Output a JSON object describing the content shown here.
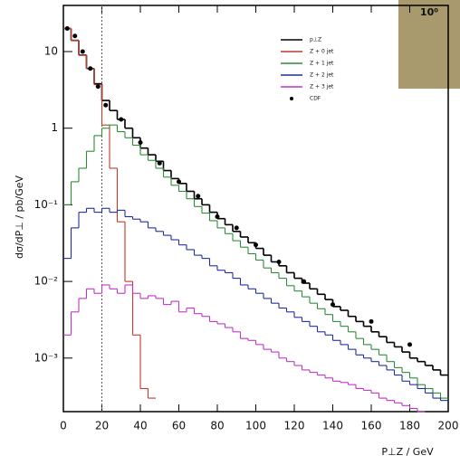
{
  "chart_data": {
    "type": "histogram",
    "y_label": "dσ/dP⊥ / pb/GeV",
    "x_label": "P⊥Z / GeV",
    "corner_label": "10⁰",
    "log_scale_y": true,
    "xlim": [
      0,
      200
    ],
    "ylim": [
      0.0002,
      40
    ],
    "xticks": [
      0,
      20,
      40,
      60,
      80,
      100,
      120,
      140,
      160,
      180,
      200
    ],
    "yticks": [
      {
        "value": 0.001,
        "label": "10⁻³"
      },
      {
        "value": 0.01,
        "label": "10⁻²"
      },
      {
        "value": 0.1,
        "label": "10⁻¹"
      },
      1,
      10
    ],
    "vline": 20,
    "bins": [
      0,
      4,
      8,
      12,
      16,
      20,
      24,
      28,
      32,
      36,
      40,
      44,
      48,
      52,
      56,
      60,
      64,
      68,
      72,
      76,
      80,
      84,
      88,
      92,
      96,
      100,
      104,
      108,
      112,
      116,
      120,
      124,
      128,
      132,
      136,
      140,
      144,
      148,
      152,
      156,
      160,
      164,
      168,
      172,
      176,
      180,
      184,
      188,
      192,
      196,
      200
    ],
    "series": [
      {
        "name": "p⊥Z",
        "color": "#000000",
        "values": [
          20,
          14,
          9,
          6,
          3.8,
          2.3,
          1.7,
          1.3,
          1.0,
          0.75,
          0.55,
          0.45,
          0.37,
          0.28,
          0.22,
          0.19,
          0.15,
          0.12,
          0.1,
          0.08,
          0.066,
          0.055,
          0.045,
          0.038,
          0.032,
          0.027,
          0.022,
          0.018,
          0.016,
          0.013,
          0.011,
          0.0095,
          0.008,
          0.0068,
          0.0058,
          0.0047,
          0.0042,
          0.0035,
          0.003,
          0.0026,
          0.0022,
          0.0019,
          0.0016,
          0.0014,
          0.0012,
          0.001,
          0.0009,
          0.0008,
          0.0007,
          0.0006
        ]
      },
      {
        "name": "Z + 0 jet",
        "color": "#c0392b",
        "values": [
          20,
          14,
          9,
          6,
          3.7,
          1.1,
          0.3,
          0.06,
          0.01,
          0.002,
          0.0004,
          0.0003,
          null,
          null,
          null,
          null,
          null,
          null,
          null,
          null,
          null,
          null,
          null,
          null,
          null,
          null,
          null,
          null,
          null,
          null,
          null,
          null,
          null,
          null,
          null,
          null,
          null,
          null,
          null,
          null,
          null,
          null,
          null,
          null,
          null,
          null,
          null,
          null,
          null,
          null
        ]
      },
      {
        "name": "Z + 1 jet",
        "color": "#2e8b3a",
        "values": [
          0.1,
          0.2,
          0.3,
          0.5,
          0.8,
          1.0,
          1.1,
          0.9,
          0.75,
          0.6,
          0.45,
          0.38,
          0.3,
          0.23,
          0.18,
          0.15,
          0.12,
          0.095,
          0.078,
          0.062,
          0.05,
          0.042,
          0.034,
          0.028,
          0.023,
          0.019,
          0.015,
          0.013,
          0.011,
          0.0088,
          0.0075,
          0.0063,
          0.0052,
          0.0044,
          0.0037,
          0.003,
          0.0026,
          0.0022,
          0.0018,
          0.0015,
          0.0013,
          0.0011,
          0.0009,
          0.00075,
          0.00065,
          0.00055,
          0.00045,
          0.0004,
          0.00035,
          0.0003
        ]
      },
      {
        "name": "Z + 2 jet",
        "color": "#1f2fa0",
        "values": [
          0.02,
          0.05,
          0.08,
          0.09,
          0.08,
          0.09,
          0.08,
          0.085,
          0.07,
          0.065,
          0.06,
          0.05,
          0.045,
          0.04,
          0.035,
          0.03,
          0.026,
          0.022,
          0.02,
          0.016,
          0.014,
          0.013,
          0.011,
          0.009,
          0.008,
          0.007,
          0.006,
          0.0052,
          0.0045,
          0.004,
          0.0034,
          0.003,
          0.0026,
          0.0022,
          0.002,
          0.0017,
          0.0015,
          0.0013,
          0.0011,
          0.001,
          0.0009,
          0.0008,
          0.0007,
          0.0006,
          0.0005,
          0.00045,
          0.0004,
          0.00035,
          0.0003,
          0.00028
        ]
      },
      {
        "name": "Z + 3 jet",
        "color": "#c233c8",
        "values": [
          0.002,
          0.004,
          0.006,
          0.008,
          0.007,
          0.009,
          0.008,
          0.007,
          0.009,
          0.007,
          0.006,
          0.0065,
          0.006,
          0.005,
          0.0055,
          0.004,
          0.0045,
          0.0038,
          0.0035,
          0.003,
          0.0028,
          0.0025,
          0.0022,
          0.0018,
          0.0017,
          0.0015,
          0.0013,
          0.0012,
          0.001,
          0.0009,
          0.0008,
          0.0007,
          0.00065,
          0.0006,
          0.00055,
          0.0005,
          0.00048,
          0.00045,
          0.0004,
          0.00038,
          0.00035,
          0.0003,
          0.00028,
          0.00026,
          0.00024,
          0.00022,
          0.0002,
          null,
          null,
          null
        ]
      },
      {
        "name": "CDF",
        "color": "#000000",
        "x": [
          2,
          6,
          10,
          14,
          18,
          22,
          30,
          40,
          50,
          60,
          70,
          80,
          90,
          100,
          112,
          125,
          140,
          160,
          180
        ],
        "values": [
          20,
          16,
          10,
          6,
          3.5,
          2,
          1.3,
          0.65,
          0.35,
          0.2,
          0.13,
          0.07,
          0.05,
          0.03,
          0.018,
          0.01,
          0.005,
          0.003,
          0.0015
        ]
      }
    ]
  }
}
